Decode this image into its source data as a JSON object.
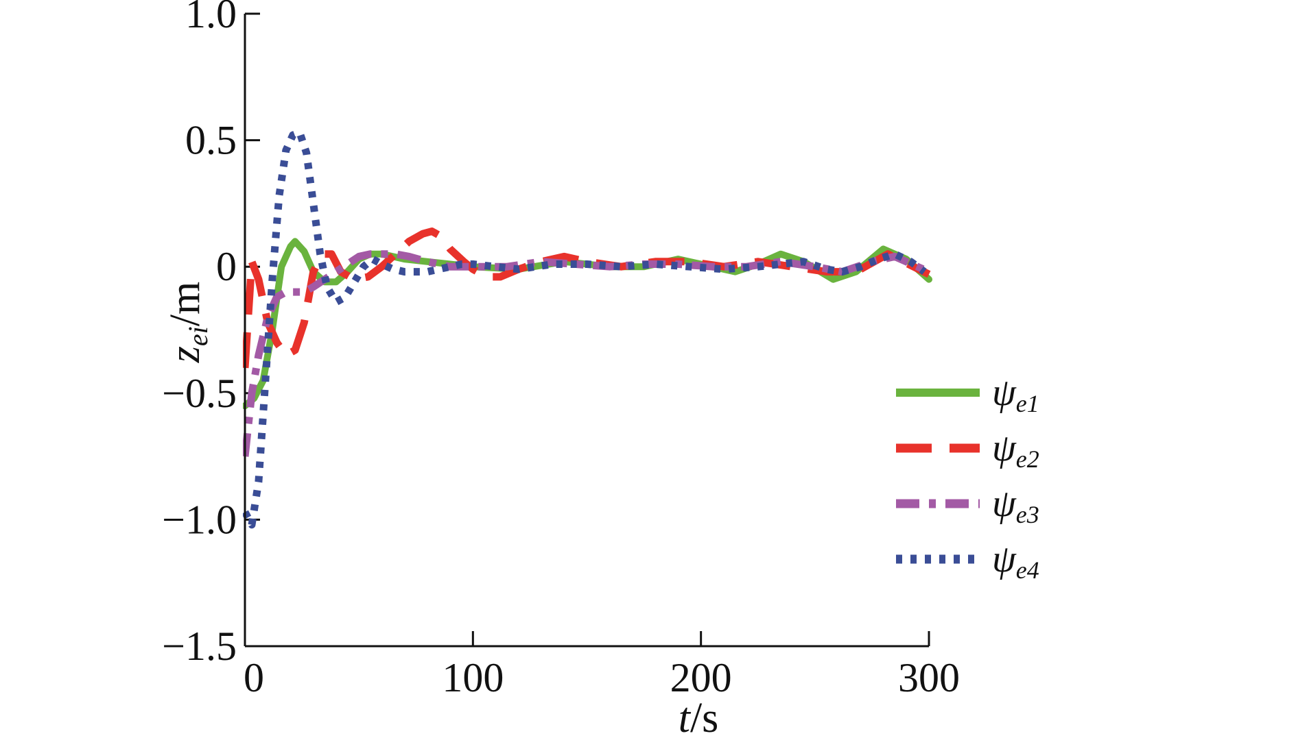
{
  "chart_data": {
    "type": "line",
    "xlabel": {
      "var": "t",
      "unit": "/s"
    },
    "ylabel": {
      "var": "z",
      "sub": "ei",
      "unit": "/m"
    },
    "xlim": [
      0,
      300
    ],
    "ylim": [
      -1.5,
      1.0
    ],
    "xticks": [
      0,
      100,
      200,
      300
    ],
    "yticks": [
      1.0,
      0.5,
      0,
      -0.5,
      -1.0,
      -1.5
    ],
    "xtick_labels": [
      "0",
      "100",
      "200",
      "300"
    ],
    "ytick_labels": [
      "1.0",
      "0.5",
      "0",
      "−0.5",
      "−1.0",
      "−1.5"
    ],
    "grid": false,
    "legend_position": "right",
    "series": [
      {
        "name": "ψe1",
        "symbol": "ψ",
        "sub": "e1",
        "color": "#6ab33e",
        "style": "solid",
        "x": [
          0,
          4,
          8,
          12,
          16,
          20,
          22,
          26,
          30,
          35,
          40,
          45,
          50,
          55,
          60,
          65,
          70,
          80,
          90,
          100,
          120,
          140,
          160,
          175,
          190,
          205,
          215,
          225,
          235,
          245,
          258,
          268,
          280,
          290,
          300
        ],
        "y": [
          -0.55,
          -0.52,
          -0.45,
          -0.25,
          0.0,
          0.08,
          0.1,
          0.06,
          -0.02,
          -0.06,
          -0.06,
          -0.02,
          0.03,
          0.05,
          0.05,
          0.04,
          0.03,
          0.02,
          0.01,
          0.0,
          -0.01,
          0.02,
          0.0,
          0.0,
          0.03,
          0.0,
          -0.02,
          0.01,
          0.05,
          0.02,
          -0.05,
          -0.02,
          0.07,
          0.03,
          -0.05
        ]
      },
      {
        "name": "ψe2",
        "symbol": "ψ",
        "sub": "e2",
        "color": "#e8322b",
        "style": "dashed",
        "x": [
          0,
          3,
          6,
          10,
          14,
          18,
          22,
          26,
          30,
          34,
          38,
          42,
          48,
          54,
          60,
          66,
          72,
          78,
          82,
          86,
          90,
          96,
          100,
          106,
          112,
          120,
          130,
          140,
          150,
          165,
          180,
          195,
          210,
          225,
          240,
          255,
          268,
          282,
          300
        ],
        "y": [
          -0.4,
          0.02,
          -0.05,
          -0.22,
          -0.3,
          -0.35,
          -0.33,
          -0.22,
          -0.02,
          0.05,
          0.05,
          -0.02,
          -0.05,
          -0.04,
          0.0,
          0.05,
          0.1,
          0.13,
          0.14,
          0.12,
          0.07,
          0.02,
          -0.01,
          -0.04,
          -0.04,
          -0.01,
          0.02,
          0.04,
          0.02,
          0.0,
          0.02,
          0.02,
          0.0,
          0.02,
          0.0,
          -0.02,
          -0.02,
          0.05,
          -0.03
        ]
      },
      {
        "name": "ψe3",
        "symbol": "ψ",
        "sub": "e3",
        "color": "#a35aa5",
        "style": "dashdot",
        "x": [
          0,
          3,
          6,
          10,
          14,
          18,
          22,
          26,
          30,
          35,
          40,
          45,
          50,
          55,
          60,
          66,
          72,
          80,
          90,
          100,
          115,
          130,
          145,
          160,
          175,
          190,
          205,
          220,
          235,
          250,
          262,
          275,
          285,
          300
        ],
        "y": [
          -0.75,
          -0.5,
          -0.35,
          -0.2,
          -0.12,
          -0.1,
          -0.1,
          -0.1,
          -0.08,
          -0.05,
          -0.02,
          0.01,
          0.04,
          0.05,
          0.05,
          0.05,
          0.04,
          0.02,
          0.0,
          0.0,
          0.0,
          0.02,
          0.01,
          0.0,
          0.01,
          0.01,
          0.0,
          0.0,
          0.02,
          0.0,
          -0.02,
          0.02,
          0.04,
          -0.02
        ]
      },
      {
        "name": "ψe4",
        "symbol": "ψ",
        "sub": "e4",
        "color": "#3a4d96",
        "style": "dotted",
        "x": [
          0,
          3,
          6,
          9,
          12,
          15,
          18,
          21,
          24,
          27,
          30,
          33,
          36,
          40,
          44,
          48,
          52,
          56,
          60,
          65,
          70,
          75,
          80,
          85,
          90,
          95,
          100,
          110,
          120,
          135,
          150,
          165,
          180,
          195,
          210,
          225,
          235,
          245,
          255,
          262,
          270,
          278,
          285,
          292,
          298
        ],
        "y": [
          -0.97,
          -1.02,
          -0.85,
          -0.45,
          -0.05,
          0.28,
          0.46,
          0.52,
          0.53,
          0.45,
          0.25,
          0.05,
          -0.08,
          -0.14,
          -0.12,
          -0.06,
          0.0,
          0.03,
          0.01,
          -0.01,
          -0.02,
          -0.02,
          -0.02,
          -0.01,
          0.0,
          0.01,
          0.01,
          0.0,
          -0.01,
          0.01,
          0.01,
          0.0,
          0.01,
          0.0,
          -0.01,
          0.0,
          0.01,
          0.02,
          -0.01,
          -0.02,
          0.0,
          0.03,
          0.05,
          0.02,
          -0.02
        ]
      }
    ]
  }
}
